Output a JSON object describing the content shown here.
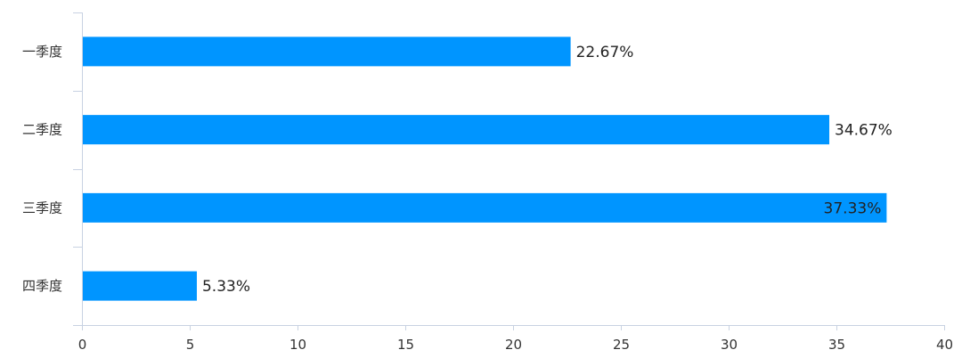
{
  "chart_data": {
    "type": "bar",
    "orientation": "horizontal",
    "title": "",
    "xlabel": "",
    "ylabel": "",
    "categories": [
      "一季度",
      "二季度",
      "三季度",
      "四季度"
    ],
    "values": [
      22.67,
      34.67,
      37.33,
      5.33
    ],
    "data_labels": [
      "22.67%",
      "34.67%",
      "37.33%",
      "5.33%"
    ],
    "xlim": [
      0,
      40
    ],
    "xticks": [
      "0",
      "5",
      "10",
      "15",
      "20",
      "25",
      "30",
      "35",
      "40"
    ],
    "grid": false,
    "legend": "none",
    "bar_color": "#0095ff",
    "axis_color": "#c8d2e2",
    "text_color": "#333333"
  }
}
